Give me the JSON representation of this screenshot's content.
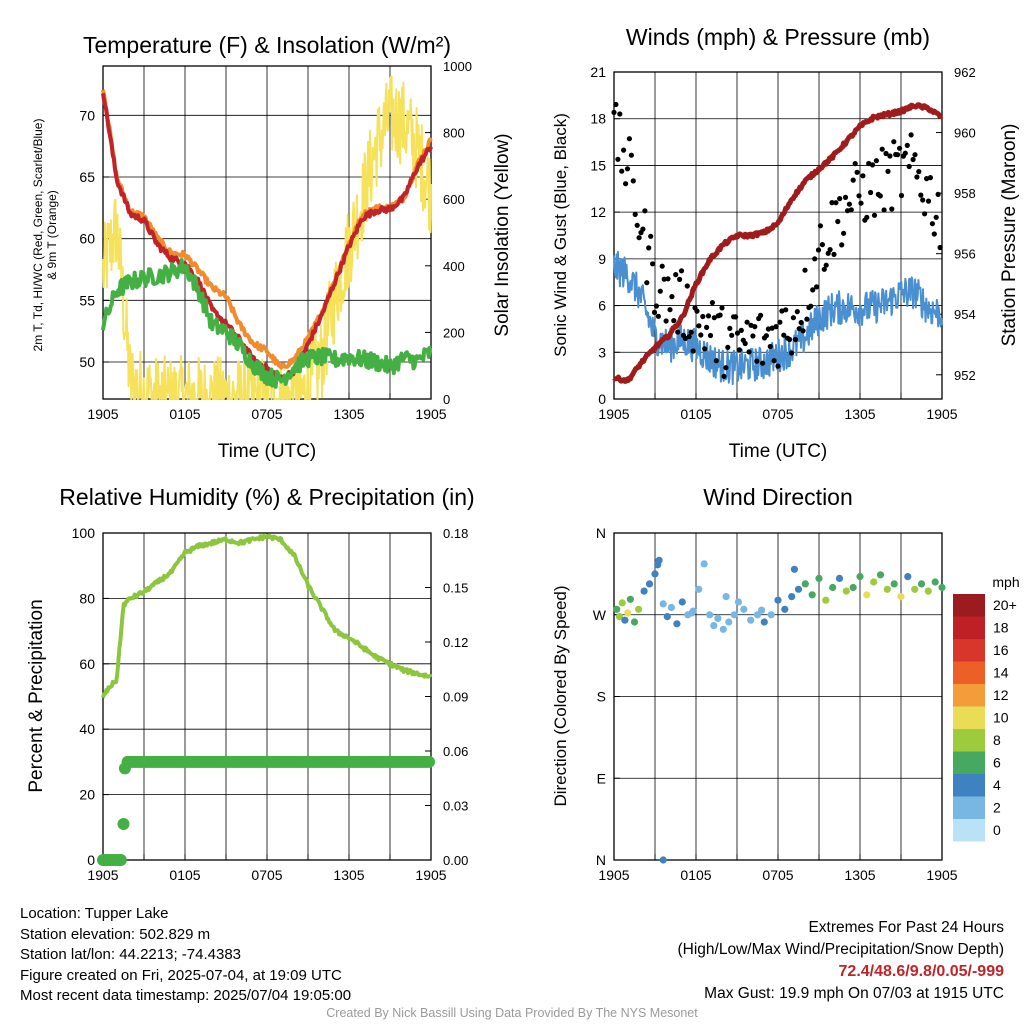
{
  "chart_data": [
    {
      "type": "line",
      "title": "Temperature (F) & Insolation (W/m²)",
      "xlabel": "Time (UTC)",
      "ylabel_left_lines": [
        "2m T, Td, HI/WC (Red, Green, Scarlet/Blue)",
        "& 9m T (Orange)"
      ],
      "ylabel_right": "Solar Insolation (Yellow)",
      "x_ticks": [
        "1905",
        "0105",
        "0705",
        "1305",
        "1905"
      ],
      "ylim_left": [
        47,
        74
      ],
      "y_ticks_left": [
        50,
        55,
        60,
        65,
        70
      ],
      "ylim_right": [
        0,
        1000
      ],
      "y_ticks_right": [
        0,
        200,
        400,
        600,
        800,
        1000
      ],
      "grid": true,
      "x_hours": [
        0,
        1,
        2,
        3,
        4,
        5,
        6,
        7,
        8,
        9,
        10,
        11,
        12,
        13,
        14,
        15,
        16,
        17,
        18,
        19,
        20,
        21,
        22,
        23,
        24
      ],
      "series": [
        {
          "color": "#f28a2e",
          "axis": "left",
          "values": [
            72.3,
            65.0,
            62.2,
            61.8,
            60.0,
            58.8,
            58.7,
            57.4,
            56.0,
            55.3,
            53.0,
            51.5,
            50.9,
            49.5,
            50.2,
            51.9,
            54.0,
            56.8,
            59.6,
            61.9,
            62.5,
            62.5,
            63.3,
            66.0,
            68.0
          ]
        },
        {
          "color": "#c0242a",
          "axis": "left",
          "values": [
            72.0,
            64.8,
            62.0,
            61.5,
            59.5,
            58.4,
            58.0,
            56.5,
            54.2,
            53.1,
            51.8,
            50.2,
            49.5,
            48.6,
            49.3,
            51.4,
            53.8,
            56.6,
            59.4,
            61.7,
            62.3,
            62.4,
            63.3,
            65.8,
            67.5
          ]
        },
        {
          "color": "#44b044",
          "axis": "left",
          "values": [
            53.0,
            55.8,
            56.5,
            56.8,
            57.0,
            57.3,
            57.8,
            55.8,
            53.0,
            52.5,
            51.3,
            49.8,
            48.9,
            48.5,
            49.6,
            50.3,
            50.4,
            50.2,
            50.4,
            50.2,
            50.0,
            49.6,
            50.3,
            50.1,
            50.8
          ]
        },
        {
          "color": "#f6e25a",
          "axis": "right",
          "values": [
            380,
            520,
            50,
            18,
            0,
            0,
            0,
            0,
            0,
            0,
            0,
            0,
            0,
            0,
            0,
            20,
            120,
            310,
            460,
            600,
            760,
            850,
            830,
            750,
            620
          ]
        }
      ]
    },
    {
      "type": "line",
      "title": "Winds (mph) & Pressure (mb)",
      "xlabel": "Time (UTC)",
      "ylabel_left": "Sonic Wind & Gust (Blue, Black)",
      "ylabel_right": "Station Pressure (Maroon)",
      "x_ticks": [
        "1905",
        "0105",
        "0705",
        "1305",
        "1905"
      ],
      "ylim_left": [
        0,
        21
      ],
      "y_ticks_left": [
        0,
        3,
        6,
        9,
        12,
        15,
        18,
        21
      ],
      "ylim_right": [
        951.2,
        962
      ],
      "y_ticks_right": [
        952,
        954,
        956,
        958,
        960,
        962
      ],
      "grid": true,
      "x_hours": [
        0,
        1,
        2,
        3,
        4,
        5,
        6,
        7,
        8,
        9,
        10,
        11,
        12,
        13,
        14,
        15,
        16,
        17,
        18,
        19,
        20,
        21,
        22,
        23,
        24
      ],
      "series": [
        {
          "color": "#4a8fd0",
          "axis": "left",
          "values": [
            8.5,
            8.0,
            6.5,
            4.0,
            3.4,
            3.8,
            3.4,
            2.6,
            2.1,
            2.0,
            2.2,
            2.3,
            2.8,
            3.2,
            4.0,
            5.2,
            5.8,
            5.9,
            5.8,
            5.9,
            6.2,
            6.8,
            6.9,
            5.8,
            5.5
          ]
        },
        {
          "color": "#000000",
          "axis": "left",
          "marker": "point",
          "values": [
            17.0,
            15.0,
            11.0,
            7.5,
            6.5,
            6.0,
            5.0,
            4.6,
            3.7,
            3.5,
            3.7,
            3.7,
            4.3,
            4.8,
            6.5,
            9.5,
            11.0,
            12.5,
            13.2,
            13.6,
            14.2,
            14.6,
            14.8,
            13.2,
            11.5
          ]
        },
        {
          "color": "#a01b1b",
          "axis": "right",
          "values": [
            951.9,
            951.8,
            952.4,
            952.9,
            953.3,
            953.9,
            955.0,
            955.8,
            956.3,
            956.6,
            956.6,
            956.7,
            957.0,
            957.8,
            958.4,
            958.8,
            959.2,
            959.7,
            960.2,
            960.5,
            960.6,
            960.7,
            960.9,
            960.8,
            960.5
          ]
        }
      ]
    },
    {
      "type": "line",
      "title": "Relative Humidity (%) & Precipitation (in)",
      "xlabel": "",
      "ylabel_left": "Percent & Precipitation",
      "x_ticks": [
        "1905",
        "0105",
        "0705",
        "1305",
        "1905"
      ],
      "ylim_left": [
        0,
        100
      ],
      "y_ticks_left": [
        0,
        20,
        40,
        60,
        80,
        100
      ],
      "ylim_right": [
        0,
        0.18
      ],
      "y_tick_labels_right": [
        "0.00",
        "0.03",
        "0.06",
        "0.09",
        "0.12",
        "0.15",
        "0.18"
      ],
      "grid": true,
      "x_hours": [
        0,
        0.5,
        1,
        1.5,
        2,
        3,
        4,
        5,
        6,
        7,
        8,
        9,
        10,
        11,
        12,
        13,
        14,
        15,
        16,
        17,
        18,
        19,
        20,
        21,
        22,
        23,
        24
      ],
      "series": [
        {
          "color": "#8cc63f",
          "axis": "left",
          "values": [
            50,
            53,
            55,
            78,
            80,
            82,
            85,
            88,
            94,
            96,
            97,
            98,
            97,
            98,
            99,
            98,
            93,
            84,
            77,
            70,
            68,
            65,
            62,
            60,
            58,
            57,
            56
          ]
        }
      ],
      "precip_points": {
        "color": "#44b044",
        "x_hours": [
          0,
          0.3,
          0.6,
          0.9,
          1.1,
          1.3,
          1.5,
          1.6,
          1.8,
          2.4,
          4,
          8,
          12,
          16,
          20,
          24
        ],
        "values_pct": [
          0,
          0,
          0,
          0,
          0,
          0,
          11,
          28,
          30,
          30,
          30,
          30,
          30,
          30,
          30,
          30
        ]
      }
    },
    {
      "type": "scatter",
      "title": "Wind Direction",
      "ylabel_left": "Direction (Colored By Speed)",
      "x_ticks": [
        "1905",
        "0105",
        "0705",
        "1305",
        "1905"
      ],
      "y_ticks_left": [
        "N",
        "E",
        "S",
        "W",
        "N"
      ],
      "ylim_left": [
        0,
        360
      ],
      "grid": true,
      "points": [
        [
          0.2,
          276,
          6
        ],
        [
          0.4,
          268,
          8
        ],
        [
          0.6,
          283,
          7
        ],
        [
          0.8,
          264,
          4
        ],
        [
          1.0,
          272,
          9
        ],
        [
          1.2,
          287,
          6
        ],
        [
          1.5,
          262,
          5
        ],
        [
          1.8,
          276,
          8
        ],
        [
          2.2,
          296,
          4
        ],
        [
          2.6,
          304,
          3
        ],
        [
          3.0,
          315,
          4
        ],
        [
          3.3,
          330,
          3
        ],
        [
          3.6,
          282,
          2
        ],
        [
          3.9,
          268,
          4
        ],
        [
          4.2,
          278,
          2
        ],
        [
          4.6,
          260,
          3
        ],
        [
          5.0,
          284,
          3
        ],
        [
          5.4,
          270,
          2
        ],
        [
          5.8,
          274,
          2
        ],
        [
          6.2,
          298,
          2
        ],
        [
          6.6,
          326,
          2
        ],
        [
          7.0,
          270,
          1
        ],
        [
          7.3,
          258,
          1
        ],
        [
          7.6,
          266,
          1
        ],
        [
          8.0,
          254,
          1
        ],
        [
          8.4,
          262,
          1
        ],
        [
          8.8,
          270,
          1
        ],
        [
          9.1,
          284,
          2
        ],
        [
          9.5,
          276,
          1
        ],
        [
          10.0,
          264,
          2
        ],
        [
          10.5,
          270,
          2
        ],
        [
          11.0,
          262,
          3
        ],
        [
          11.5,
          270,
          2
        ],
        [
          12.0,
          286,
          4
        ],
        [
          12.5,
          276,
          3
        ],
        [
          13.0,
          290,
          4
        ],
        [
          13.5,
          298,
          4
        ],
        [
          14.0,
          304,
          5
        ],
        [
          14.5,
          292,
          6
        ],
        [
          15.0,
          310,
          5
        ],
        [
          15.5,
          286,
          7
        ],
        [
          16.0,
          300,
          6
        ],
        [
          16.5,
          310,
          4
        ],
        [
          17.0,
          296,
          8
        ],
        [
          17.5,
          300,
          5
        ],
        [
          18.0,
          312,
          6
        ],
        [
          18.5,
          292,
          9
        ],
        [
          19.0,
          306,
          7
        ],
        [
          19.5,
          314,
          6
        ],
        [
          20.0,
          298,
          8
        ],
        [
          20.5,
          304,
          5
        ],
        [
          21.0,
          290,
          9
        ],
        [
          21.5,
          312,
          4
        ],
        [
          22.0,
          298,
          7
        ],
        [
          22.5,
          304,
          6
        ],
        [
          23.0,
          296,
          8
        ],
        [
          23.5,
          306,
          5
        ],
        [
          24.0,
          300,
          6
        ],
        [
          3.6,
          0,
          4
        ],
        [
          3.2,
          325,
          3
        ],
        [
          5.7,
          272,
          2
        ],
        [
          8.2,
          290,
          1
        ],
        [
          10.8,
          275,
          1
        ],
        [
          13.2,
          320,
          4
        ]
      ]
    }
  ],
  "legend": {
    "title": "mph",
    "labels": [
      "20+",
      "18",
      "16",
      "14",
      "12",
      "10",
      "8",
      "6",
      "4",
      "2",
      "0"
    ],
    "colors": [
      "#9b1b1e",
      "#bf2026",
      "#d9362b",
      "#ec6028",
      "#f39c39",
      "#e9dd57",
      "#9ecb3c",
      "#46a861",
      "#3e82c0",
      "#78b6e3",
      "#b9e2f6"
    ]
  },
  "station": {
    "location": "Location: Tupper Lake",
    "elevation": "Station elevation: 502.829 m",
    "latlon": "Station lat/lon: 44.2213; -74.4383",
    "created": "Figure created on Fri, 2025-07-04, at 19:09 UTC",
    "recent": "Most recent data timestamp: 2025/07/04 19:05:00"
  },
  "extremes": {
    "title": "Extremes For Past 24 Hours",
    "subtitle": "(High/Low/Max Wind/Precipitation/Snow Depth)",
    "values": "72.4/48.6/9.8/0.05/-999",
    "max_gust": "Max Gust: 19.9 mph On 07/03 at 1915 UTC"
  },
  "credit": "Created By Nick Bassill Using Data Provided By The NYS Mesonet"
}
